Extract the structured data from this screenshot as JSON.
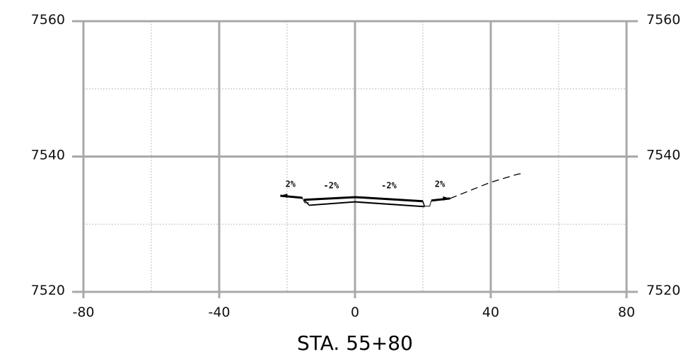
{
  "station_label": "STA. 55+80",
  "x_axis": {
    "ticks": [
      -80,
      -40,
      0,
      40,
      80
    ],
    "minor_ticks": [
      -60,
      -20,
      20,
      60
    ],
    "range": [
      -80,
      80
    ]
  },
  "y_axis": {
    "ticks": [
      7520,
      7540,
      7560
    ],
    "minor_ticks": [
      7530,
      7550
    ],
    "range": [
      7520,
      7560
    ]
  },
  "colors": {
    "major_grid": "#a8a8a8",
    "minor_grid": "#bdbdbd",
    "linework": "#000000"
  },
  "section": {
    "top_surface": [
      [
        -15,
        7533.6
      ],
      [
        0,
        7534.0
      ],
      [
        20,
        7533.4
      ]
    ],
    "bottom_surface": [
      [
        -13.5,
        7532.8
      ],
      [
        0,
        7533.3
      ],
      [
        20.5,
        7532.6
      ]
    ],
    "left_shoulder": [
      [
        -22,
        7534.2
      ],
      [
        -15.5,
        7533.9
      ]
    ],
    "right_shoulder": [
      [
        22.5,
        7533.5
      ],
      [
        28,
        7533.8
      ]
    ],
    "existing_ground": [
      [
        28,
        7533.8
      ],
      [
        40,
        7536.2
      ],
      [
        48,
        7537.4
      ],
      [
        49.5,
        7537.5
      ]
    ]
  },
  "slope_labels": [
    {
      "text": "2%",
      "x": -19,
      "y": 7535.5
    },
    {
      "text": "-2%",
      "x": -7,
      "y": 7535.3
    },
    {
      "text": "-2%",
      "x": 10,
      "y": 7535.3
    },
    {
      "text": "2%",
      "x": 25,
      "y": 7535.5
    }
  ]
}
